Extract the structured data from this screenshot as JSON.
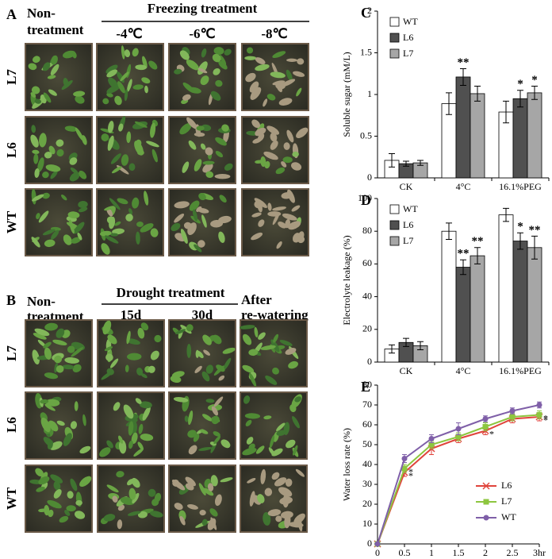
{
  "photo_panels": [
    {
      "label": "A",
      "header": [
        "Non-",
        "treatment"
      ],
      "group_title": "Freezing treatment",
      "columns": [
        "-4℃",
        "-6℃",
        "-8℃"
      ],
      "rows": [
        "L7",
        "L6",
        "WT"
      ]
    },
    {
      "label": "B",
      "header": [
        "Non-",
        "treatment"
      ],
      "group_title": "Drought treatment",
      "columns": [
        "15d",
        "30d"
      ],
      "extra_column": [
        "After",
        "re-watering"
      ],
      "rows": [
        "L7",
        "L6",
        "WT"
      ]
    }
  ],
  "chart_data": [
    {
      "type": "bar",
      "panel": "C",
      "y_label": "Soluble sugar (mM/L)",
      "categories": [
        "CK",
        "4°C",
        "16.1%PEG"
      ],
      "ylim": [
        0,
        2
      ],
      "yticks": [
        0,
        0.5,
        1,
        1.5,
        2
      ],
      "legend": "top-left",
      "series": [
        {
          "name": "WT",
          "color": "#ffffff",
          "values": [
            0.21,
            0.89,
            0.79
          ],
          "errors": [
            0.08,
            0.13,
            0.13
          ],
          "stars": [
            null,
            null,
            null
          ]
        },
        {
          "name": "L6",
          "color": "#505050",
          "values": [
            0.17,
            1.21,
            0.95
          ],
          "errors": [
            0.03,
            0.1,
            0.1
          ],
          "stars": [
            null,
            "**",
            "*"
          ]
        },
        {
          "name": "L7",
          "color": "#a6a6a6",
          "values": [
            0.18,
            1.01,
            1.02
          ],
          "errors": [
            0.03,
            0.09,
            0.08
          ],
          "stars": [
            null,
            null,
            "*"
          ]
        }
      ]
    },
    {
      "type": "bar",
      "panel": "D",
      "y_label": "Electrolyte leakage (%)",
      "categories": [
        "CK",
        "4°C",
        "16.1%PEG"
      ],
      "ylim": [
        0,
        100
      ],
      "yticks": [
        0,
        20,
        40,
        60,
        80,
        100
      ],
      "legend": "top-left",
      "series": [
        {
          "name": "WT",
          "color": "#ffffff",
          "values": [
            8,
            80,
            90
          ],
          "errors": [
            2.5,
            5,
            4
          ],
          "stars": [
            null,
            null,
            null
          ]
        },
        {
          "name": "L6",
          "color": "#505050",
          "values": [
            12,
            58,
            74
          ],
          "errors": [
            2.5,
            4.5,
            5
          ],
          "stars": [
            null,
            "**",
            "*"
          ]
        },
        {
          "name": "L7",
          "color": "#a6a6a6",
          "values": [
            10,
            65,
            70
          ],
          "errors": [
            2.5,
            5,
            7
          ],
          "stars": [
            null,
            "**",
            "**"
          ]
        }
      ]
    },
    {
      "type": "line",
      "panel": "E",
      "y_label": "Water loss rate (%)",
      "x": [
        0,
        0.5,
        1,
        1.5,
        2,
        2.5,
        3
      ],
      "xlim": [
        0,
        3
      ],
      "xticks": [
        0,
        0.5,
        1,
        1.5,
        2,
        2.5,
        {
          "value": 3,
          "label": "3hr"
        }
      ],
      "ylim": [
        0,
        80
      ],
      "yticks": [
        0,
        10,
        20,
        30,
        40,
        50,
        60,
        70,
        80
      ],
      "legend": "bottom-right",
      "series": [
        {
          "name": "L6",
          "color": "#e0443c",
          "marker": "x",
          "values": [
            0,
            36,
            48,
            53,
            57,
            63,
            64
          ],
          "errors": [
            0,
            2,
            3,
            2,
            2,
            2,
            2
          ],
          "stars": [
            null,
            "*",
            null,
            null,
            "*",
            null,
            "*"
          ]
        },
        {
          "name": "L7",
          "color": "#8dc63f",
          "marker": "square",
          "values": [
            0,
            38,
            50,
            54,
            59,
            64,
            65
          ],
          "errors": [
            0,
            2,
            2,
            2,
            2,
            2,
            2
          ],
          "stars": [
            null,
            "*",
            null,
            null,
            null,
            null,
            "*"
          ]
        },
        {
          "name": "WT",
          "color": "#7f5fa8",
          "marker": "circle",
          "values": [
            0,
            43,
            53,
            58,
            63,
            67,
            70
          ],
          "errors": [
            0,
            2,
            2,
            3,
            1.5,
            1.5,
            1.5
          ],
          "stars": [
            null,
            null,
            null,
            null,
            null,
            null,
            null
          ]
        }
      ]
    }
  ]
}
